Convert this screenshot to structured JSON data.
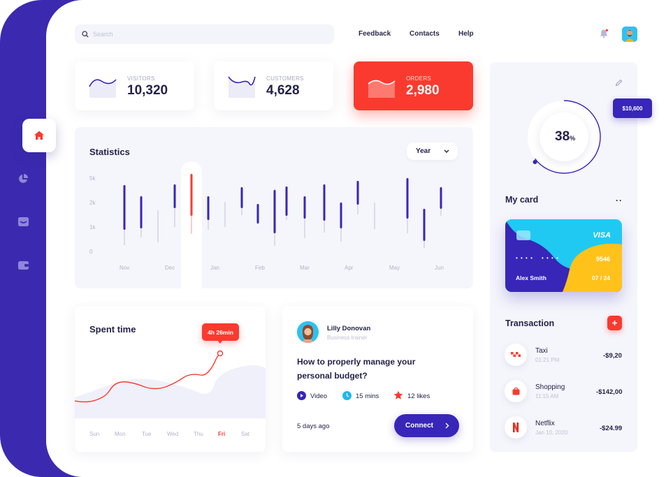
{
  "search": {
    "placeholder": "Search"
  },
  "topnav": {
    "feedback": "Feedback",
    "contacts": "Contacts",
    "help": "Help"
  },
  "sidebar": {
    "items": [
      "home-icon",
      "pie-chart-icon",
      "inbox-icon",
      "wallet-icon"
    ]
  },
  "stats": [
    {
      "label": "VISITORS",
      "value": "10,320"
    },
    {
      "label": "CUSTOMERS",
      "value": "4,628"
    },
    {
      "label": "ORDERS",
      "value": "2,980"
    }
  ],
  "statistics": {
    "title": "Statistics",
    "period": "Year",
    "y_ticks": [
      "5k",
      "2k",
      "1k",
      "0"
    ],
    "x_ticks": [
      "Nov",
      "Dec",
      "Jan",
      "Feb",
      "Mar",
      "Apr",
      "May",
      "Jun"
    ]
  },
  "progress": {
    "value_text": "38",
    "unit": "%",
    "fraction": 0.38,
    "badge": "$10,600"
  },
  "my_card": {
    "title": "My card",
    "brand": "VISA",
    "dots1": "• • • •",
    "dots2": "• • • •",
    "last4": "9546",
    "holder": "Alex Smith",
    "expiry": "07 / 24"
  },
  "transactions": {
    "title": "Transaction",
    "items": [
      {
        "name": "Taxi",
        "date": "01:21 PM",
        "amount": "-$9,20"
      },
      {
        "name": "Shopping",
        "date": "11:15 AM",
        "amount": "-$142,00"
      },
      {
        "name": "Netflix",
        "date": "Jan 10, 2020",
        "amount": "-$24.99"
      }
    ]
  },
  "spent_time": {
    "title": "Spent time",
    "tooltip": "4h 26min",
    "days": [
      "Sun",
      "Mon",
      "Tue",
      "Wed",
      "Thu",
      "Fri",
      "Sat"
    ],
    "active_day": "Fri"
  },
  "article": {
    "author": "Lilly Donovan",
    "role": "Business trainer",
    "title_line1": "How to properly manage your",
    "title_line2": "personal budget?",
    "type": "Video",
    "duration": "15 mins",
    "likes": "12 likes",
    "ago": "5 days ago",
    "cta": "Connect"
  },
  "colors": {
    "accent": "#3726b8",
    "red": "#fb3a2f",
    "cyan": "#20c9f2",
    "yellow": "#ffc21a"
  }
}
